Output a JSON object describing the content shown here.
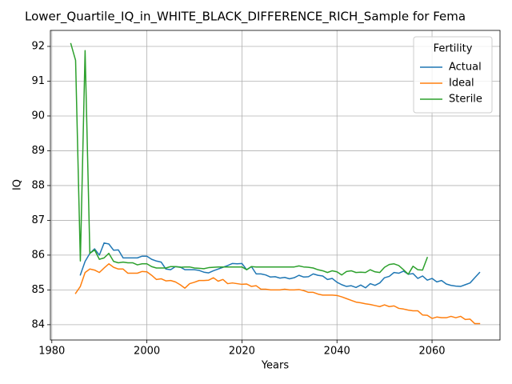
{
  "chart_data": {
    "type": "line",
    "title": "Lower_Quartile_IQ_in_WHITE_BLACK_DIFFERENCE_RICH_Sample for Fema",
    "xlabel": "Years",
    "ylabel": "IQ",
    "legend_title": "Fertility",
    "legend": "upper right",
    "grid": true,
    "xlim": [
      1979.7,
      2074.3
    ],
    "ylim": [
      83.56,
      92.46
    ],
    "xticks": [
      1980,
      2000,
      2020,
      2040,
      2060
    ],
    "yticks": [
      84,
      85,
      86,
      87,
      88,
      89,
      90,
      91,
      92
    ],
    "x": [
      1984,
      1985,
      1986,
      1987,
      1988,
      1989,
      1990,
      1991,
      1992,
      1993,
      1994,
      1995,
      1996,
      1997,
      1998,
      1999,
      2000,
      2001,
      2002,
      2003,
      2004,
      2005,
      2006,
      2007,
      2008,
      2009,
      2010,
      2011,
      2012,
      2013,
      2014,
      2015,
      2016,
      2017,
      2018,
      2019,
      2020,
      2021,
      2022,
      2023,
      2024,
      2025,
      2026,
      2027,
      2028,
      2029,
      2030,
      2031,
      2032,
      2033,
      2034,
      2035,
      2036,
      2037,
      2038,
      2039,
      2040,
      2041,
      2042,
      2043,
      2044,
      2045,
      2046,
      2047,
      2048,
      2049,
      2050,
      2051,
      2052,
      2053,
      2054,
      2055,
      2056,
      2057,
      2058,
      2059,
      2060,
      2061,
      2062,
      2063,
      2064,
      2065,
      2066,
      2067,
      2068,
      2069,
      2070
    ],
    "series": [
      {
        "name": "Actual",
        "color": "#1f77b4",
        "values": [
          null,
          null,
          85.43,
          85.82,
          86.05,
          86.18,
          86.0,
          86.35,
          86.32,
          86.14,
          86.15,
          85.92,
          85.92,
          85.92,
          85.92,
          85.97,
          85.97,
          85.88,
          85.83,
          85.8,
          85.6,
          85.58,
          85.67,
          85.66,
          85.58,
          85.58,
          85.58,
          85.56,
          85.51,
          85.49,
          85.55,
          85.6,
          85.65,
          85.7,
          85.76,
          85.75,
          85.76,
          85.58,
          85.67,
          85.46,
          85.46,
          85.43,
          85.37,
          85.38,
          85.34,
          85.36,
          85.32,
          85.35,
          85.42,
          85.37,
          85.38,
          85.46,
          85.42,
          85.4,
          85.3,
          85.33,
          85.22,
          85.15,
          85.1,
          85.12,
          85.07,
          85.14,
          85.06,
          85.18,
          85.13,
          85.2,
          85.35,
          85.39,
          85.5,
          85.48,
          85.54,
          85.45,
          85.47,
          85.33,
          85.4,
          85.28,
          85.33,
          85.23,
          85.27,
          85.17,
          85.13,
          85.11,
          85.1,
          85.15,
          85.2,
          85.35,
          85.5
        ]
      },
      {
        "name": "Ideal",
        "color": "#ff7f0e",
        "values": [
          null,
          84.9,
          85.1,
          85.5,
          85.6,
          85.57,
          85.5,
          85.63,
          85.75,
          85.65,
          85.6,
          85.6,
          85.48,
          85.48,
          85.48,
          85.53,
          85.52,
          85.42,
          85.3,
          85.32,
          85.26,
          85.27,
          85.23,
          85.15,
          85.05,
          85.18,
          85.22,
          85.27,
          85.27,
          85.28,
          85.35,
          85.25,
          85.3,
          85.18,
          85.2,
          85.18,
          85.16,
          85.17,
          85.1,
          85.12,
          85.02,
          85.02,
          85.0,
          85.0,
          85.0,
          85.02,
          85.0,
          85.0,
          85.01,
          84.98,
          84.93,
          84.93,
          84.88,
          84.85,
          84.85,
          84.85,
          84.84,
          84.8,
          84.75,
          84.7,
          84.65,
          84.63,
          84.6,
          84.58,
          84.55,
          84.52,
          84.57,
          84.52,
          84.54,
          84.47,
          84.45,
          84.42,
          84.4,
          84.4,
          84.28,
          84.27,
          84.18,
          84.22,
          84.2,
          84.2,
          84.24,
          84.2,
          84.24,
          84.15,
          84.16,
          84.03,
          84.03
        ]
      },
      {
        "name": "Sterile",
        "color": "#2ca02c",
        "values": [
          92.08,
          91.6,
          85.83,
          91.88,
          86.05,
          86.15,
          85.88,
          85.92,
          86.05,
          85.82,
          85.78,
          85.8,
          85.78,
          85.78,
          85.72,
          85.75,
          85.75,
          85.67,
          85.63,
          85.63,
          85.63,
          85.67,
          85.67,
          85.65,
          85.66,
          85.66,
          85.63,
          85.62,
          85.61,
          85.64,
          85.65,
          85.66,
          85.66,
          85.66,
          85.66,
          85.66,
          85.66,
          85.58,
          85.67,
          85.66,
          85.66,
          85.66,
          85.66,
          85.66,
          85.66,
          85.66,
          85.66,
          85.66,
          85.69,
          85.66,
          85.65,
          85.63,
          85.58,
          85.55,
          85.5,
          85.55,
          85.52,
          85.43,
          85.53,
          85.55,
          85.5,
          85.51,
          85.5,
          85.58,
          85.52,
          85.5,
          85.65,
          85.73,
          85.75,
          85.7,
          85.58,
          85.45,
          85.68,
          85.58,
          85.57,
          85.93,
          null,
          null,
          null,
          null,
          null,
          null,
          null,
          null,
          null,
          null,
          null
        ]
      }
    ]
  }
}
